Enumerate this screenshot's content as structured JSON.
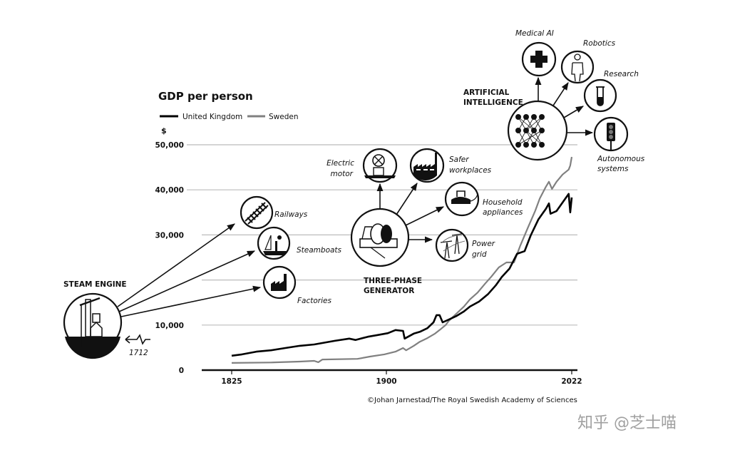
{
  "chart_data": {
    "type": "line",
    "title": "GDP per person",
    "ylabel": "$",
    "xlabel": "",
    "ylim": [
      0,
      50000
    ],
    "y_ticks": [
      {
        "value": 0,
        "label": "0"
      },
      {
        "value": 10000,
        "label": "10,000"
      },
      {
        "value": 20000,
        "label": ""
      },
      {
        "value": 30000,
        "label": "30,000"
      },
      {
        "value": 40000,
        "label": "40,000"
      },
      {
        "value": 50000,
        "label": "50,000"
      }
    ],
    "x_ticks": [
      {
        "value": 1825,
        "label": "1825"
      },
      {
        "value": 1900,
        "label": "1900"
      },
      {
        "value": 2022,
        "label": "2022"
      }
    ],
    "grid": true,
    "legend": "top-left",
    "series": [
      {
        "name": "United Kingdom",
        "color": "#000000",
        "x": [
          1825,
          1830,
          1837,
          1844,
          1851,
          1858,
          1865,
          1875,
          1882,
          1885,
          1891,
          1896,
          1901,
          1906,
          1911,
          1912,
          1918,
          1922,
          1927,
          1931,
          1933,
          1935,
          1937,
          1941,
          1946,
          1951,
          1955,
          1961,
          1967,
          1972,
          1976,
          1981,
          1986,
          1991,
          1995,
          2000,
          2005,
          2007,
          2008,
          2012,
          2016,
          2020,
          2021,
          2022
        ],
        "y": [
          3200,
          3500,
          4100,
          4400,
          4900,
          5400,
          5700,
          6500,
          7000,
          6700,
          7400,
          7800,
          8200,
          8900,
          8700,
          7000,
          8100,
          8500,
          9300,
          10600,
          12200,
          12200,
          10600,
          11200,
          12000,
          13000,
          14100,
          15200,
          16900,
          18800,
          20700,
          22500,
          25800,
          26400,
          29900,
          33400,
          35800,
          37000,
          34700,
          35300,
          37200,
          39100,
          35000,
          38300
        ]
      },
      {
        "name": "Sweden",
        "color": "#808080",
        "x": [
          1825,
          1844,
          1858,
          1865,
          1867,
          1869,
          1886,
          1892,
          1899,
          1906,
          1911,
          1913,
          1918,
          1922,
          1927,
          1932,
          1935,
          1939,
          1941,
          1946,
          1951,
          1955,
          1960,
          1965,
          1969,
          1974,
          1979,
          1984,
          1988,
          1993,
          1998,
          2001,
          2005,
          2007,
          2009,
          2012,
          2016,
          2020,
          2021,
          2022
        ],
        "y": [
          1600,
          1700,
          1900,
          2050,
          1750,
          2350,
          2500,
          3000,
          3500,
          4100,
          4900,
          4400,
          5400,
          6300,
          7100,
          8100,
          8900,
          10000,
          10900,
          12500,
          14100,
          15700,
          17200,
          19200,
          20700,
          22800,
          23900,
          23900,
          27500,
          31500,
          35400,
          38100,
          40700,
          41800,
          40200,
          41800,
          43400,
          44500,
          45400,
          47300
        ]
      }
    ]
  },
  "legend": {
    "uk": "United Kingdom",
    "sweden": "Sweden"
  },
  "annotations": {
    "steam_engine": {
      "title": "STEAM ENGINE",
      "year": "1712",
      "outcomes": [
        "Railways",
        "Steamboats",
        "Factories"
      ]
    },
    "generator": {
      "title_line1": "THREE-PHASE",
      "title_line2": "GENERATOR",
      "electric_motor": [
        "Electric",
        "motor"
      ],
      "safer_workplaces": [
        "Safer",
        "workplaces"
      ],
      "household_appliances": [
        "Household",
        "appliances"
      ],
      "power_grid": [
        "Power",
        "grid"
      ]
    },
    "ai": {
      "title_line1": "ARTIFICIAL",
      "title_line2": "INTELLIGENCE",
      "medical": "Medical AI",
      "robotics": "Robotics",
      "research": "Research",
      "autonomous": [
        "Autonomous",
        "systems"
      ]
    }
  },
  "credit": "©Johan Jarnestad/The Royal Swedish Academy of Sciences",
  "watermark": "知乎 @芝士喵"
}
